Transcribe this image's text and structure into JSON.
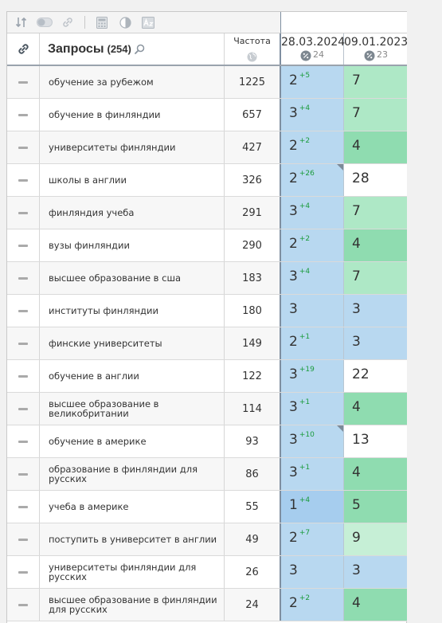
{
  "header": {
    "query_title": "Запросы",
    "query_count": "(254)",
    "frequency_label": "Частота",
    "dates": [
      {
        "date": "28.03.2024",
        "count": "24"
      },
      {
        "date": "09.01.2023",
        "count": "23"
      }
    ]
  },
  "toolbar": {
    "icons": [
      "sort-icon",
      "toggle-icon",
      "link-icon",
      "calculator-icon",
      "contrast-icon",
      "text-format-icon"
    ]
  },
  "colors": {
    "position_blue": "#b8d8f0",
    "top3_green": "#8fdcb0",
    "top10_green": "#aee8c6",
    "delta_green": "#1a9b3c"
  },
  "rows": [
    {
      "query": "обучение за рубежом",
      "freq": "1225",
      "pos1": "2",
      "delta": "+5",
      "pos2": "7"
    },
    {
      "query": "обучение в финляндии",
      "freq": "657",
      "pos1": "3",
      "delta": "+4",
      "pos2": "7"
    },
    {
      "query": "университеты финляндии",
      "freq": "427",
      "pos1": "2",
      "delta": "+2",
      "pos2": "4"
    },
    {
      "query": "школы в англии",
      "freq": "326",
      "pos1": "2",
      "delta": "+26",
      "pos2": "28"
    },
    {
      "query": "финляндия учеба",
      "freq": "291",
      "pos1": "3",
      "delta": "+4",
      "pos2": "7"
    },
    {
      "query": "вузы финляндии",
      "freq": "290",
      "pos1": "2",
      "delta": "+2",
      "pos2": "4"
    },
    {
      "query": "высшее образование в сша",
      "freq": "183",
      "pos1": "3",
      "delta": "+4",
      "pos2": "7"
    },
    {
      "query": "институты финляндии",
      "freq": "180",
      "pos1": "3",
      "delta": "",
      "pos2": "3"
    },
    {
      "query": "финские университеты",
      "freq": "149",
      "pos1": "2",
      "delta": "+1",
      "pos2": "3"
    },
    {
      "query": "обучение в англии",
      "freq": "122",
      "pos1": "3",
      "delta": "+19",
      "pos2": "22"
    },
    {
      "query": "высшее образование в великобритании",
      "freq": "114",
      "pos1": "3",
      "delta": "+1",
      "pos2": "4"
    },
    {
      "query": "обучение в америке",
      "freq": "93",
      "pos1": "3",
      "delta": "+10",
      "pos2": "13"
    },
    {
      "query": "образование в финляндии для русских",
      "freq": "86",
      "pos1": "3",
      "delta": "+1",
      "pos2": "4"
    },
    {
      "query": "учеба в америке",
      "freq": "55",
      "pos1": "1",
      "delta": "+4",
      "pos2": "5"
    },
    {
      "query": "поступить в университет в англии",
      "freq": "49",
      "pos1": "2",
      "delta": "+7",
      "pos2": "9"
    },
    {
      "query": "университеты финляндии для русских",
      "freq": "26",
      "pos1": "3",
      "delta": "",
      "pos2": "3"
    },
    {
      "query": "высшее образование в финляндии для русских",
      "freq": "24",
      "pos1": "2",
      "delta": "+2",
      "pos2": "4"
    }
  ]
}
